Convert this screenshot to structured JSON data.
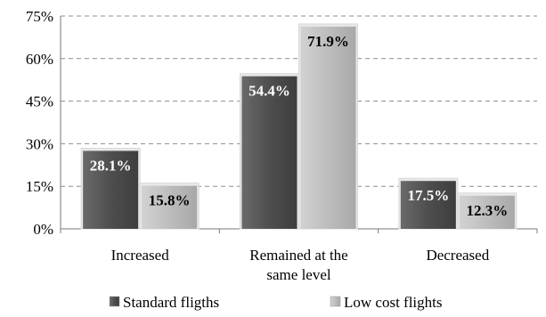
{
  "chart_data": {
    "type": "bar",
    "categories": [
      "Increased",
      "Remained at the same level",
      "Decreased"
    ],
    "category_lines": [
      [
        "Increased"
      ],
      [
        "Remained at the",
        "same level"
      ],
      [
        "Decreased"
      ]
    ],
    "series": [
      {
        "name": "Standard fligths",
        "values": [
          28.1,
          54.4,
          17.5
        ],
        "labels": [
          "28.1%",
          "54.4%",
          "17.5%"
        ],
        "color": "#555555",
        "label_color": "#ffffff"
      },
      {
        "name": "Low cost flights",
        "values": [
          15.8,
          71.9,
          12.3
        ],
        "labels": [
          "15.8%",
          "71.9%",
          "12.3%"
        ],
        "color": "#bdbdbd",
        "label_color": "#000000"
      }
    ],
    "y_ticks": [
      "0%",
      "15%",
      "30%",
      "45%",
      "60%",
      "75%"
    ],
    "y_tick_values": [
      0,
      15,
      30,
      45,
      60,
      75
    ],
    "ylim": [
      0,
      75
    ],
    "grid": true,
    "legend_position": "bottom",
    "title": "",
    "xlabel": "",
    "ylabel": ""
  }
}
